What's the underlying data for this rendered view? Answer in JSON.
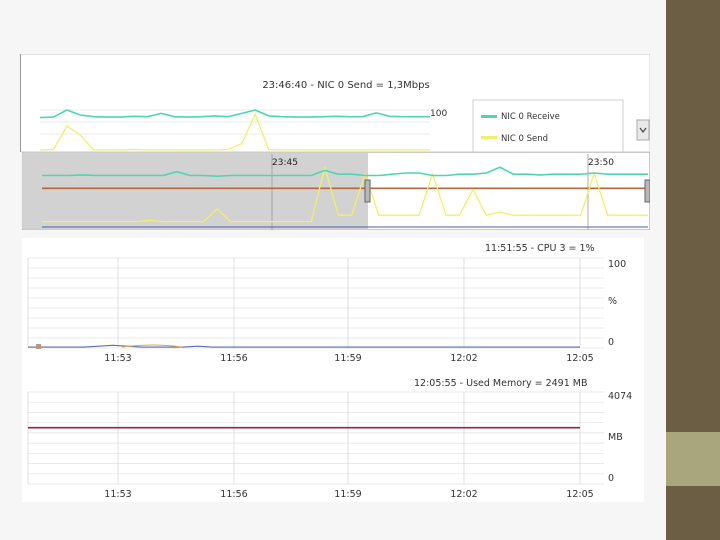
{
  "colors": {
    "side_bar": "#6b5e44",
    "side_block": "#a9a57c",
    "slide_bg": "#f6f6f6",
    "nic_receive": "#4fd6b0",
    "nic_send": "#f1ef6a",
    "baseline": "#b4673a",
    "memory_line": "#a3203a",
    "grid": "#d8d8d8",
    "overview_shade": "#d2d2d2"
  },
  "chart_data": [
    {
      "type": "line",
      "title": "23:46:40 - NIC 0 Send = 1,3Mbps",
      "y_max_label": "100",
      "legend": [
        "NIC 0 Receive",
        "NIC 0 Send"
      ],
      "series": [
        {
          "name": "NIC 0 Receive",
          "values": [
            82,
            83,
            100,
            88,
            84,
            83,
            83,
            85,
            84,
            92,
            84,
            83,
            84,
            86,
            84,
            92,
            100,
            86,
            84,
            83,
            83,
            84,
            85,
            84,
            84,
            93,
            85,
            84,
            84,
            84
          ]
        },
        {
          "name": "NIC 0 Send",
          "values": [
            5,
            6,
            62,
            40,
            5,
            5,
            5,
            6,
            5,
            5,
            5,
            5,
            5,
            5,
            6,
            20,
            90,
            6,
            5,
            5,
            5,
            5,
            5,
            5,
            5,
            5,
            5,
            5,
            5,
            5
          ]
        }
      ],
      "ylim": [
        0,
        100
      ]
    },
    {
      "type": "line",
      "time_labels": [
        "23:45",
        "23:50"
      ],
      "series": [
        {
          "name": "NIC 0 Receive",
          "values": [
            82,
            82,
            82,
            83,
            82,
            82,
            82,
            82,
            82,
            82,
            88,
            82,
            82,
            81,
            82,
            82,
            82,
            82,
            82,
            82,
            82,
            90,
            84,
            84,
            82,
            82,
            84,
            86,
            86,
            82,
            82,
            84,
            84,
            86,
            95,
            84,
            84,
            83,
            84,
            84,
            84,
            86,
            84,
            84,
            84,
            84
          ]
        },
        {
          "name": "NIC 0 Send",
          "values": [
            10,
            10,
            10,
            10,
            10,
            10,
            10,
            10,
            12,
            10,
            10,
            10,
            10,
            30,
            10,
            10,
            10,
            10,
            10,
            10,
            10,
            95,
            20,
            20,
            85,
            20,
            20,
            20,
            20,
            85,
            20,
            20,
            60,
            20,
            25,
            20,
            20,
            20,
            20,
            20,
            20,
            85,
            20,
            20,
            20,
            20
          ]
        },
        {
          "name": "baseline",
          "values": [
            62,
            62,
            62,
            62,
            62,
            62,
            62,
            62,
            62,
            62,
            62,
            62,
            62,
            62,
            62,
            62,
            62,
            62,
            62,
            62,
            62,
            62,
            62,
            62,
            62,
            62,
            62,
            62,
            62,
            62,
            62,
            62,
            62,
            62,
            62,
            62,
            62,
            62,
            62,
            62,
            62,
            62,
            62,
            62,
            62,
            62
          ]
        }
      ]
    },
    {
      "type": "line",
      "title": "11:51:55 - CPU 3 = 1%",
      "y_labels": [
        "100",
        "%",
        "0"
      ],
      "x_labels": [
        "11:53",
        "11:56",
        "11:59",
        "12:02",
        "12:05"
      ],
      "series": [
        {
          "name": "CPU 3",
          "values": [
            1,
            1,
            1,
            1,
            1,
            2,
            3,
            2,
            1,
            1,
            1,
            1,
            2,
            1,
            1,
            1,
            1,
            1,
            1,
            1,
            1,
            1,
            1,
            1,
            1,
            1,
            1,
            1,
            1,
            1,
            1,
            1,
            1,
            1,
            1,
            1,
            1,
            1,
            1,
            1
          ]
        }
      ],
      "ylim": [
        0,
        100
      ]
    },
    {
      "type": "line",
      "title": "12:05:55 - Used Memory = 2491 MB",
      "y_labels": [
        "4074",
        "MB",
        "0"
      ],
      "x_labels": [
        "11:53",
        "11:56",
        "11:59",
        "12:02",
        "12:05"
      ],
      "series": [
        {
          "name": "Used Memory",
          "values": [
            2491,
            2491,
            2491,
            2491,
            2491,
            2491,
            2491,
            2491,
            2491,
            2491
          ]
        }
      ],
      "ylim": [
        0,
        4074
      ]
    }
  ]
}
